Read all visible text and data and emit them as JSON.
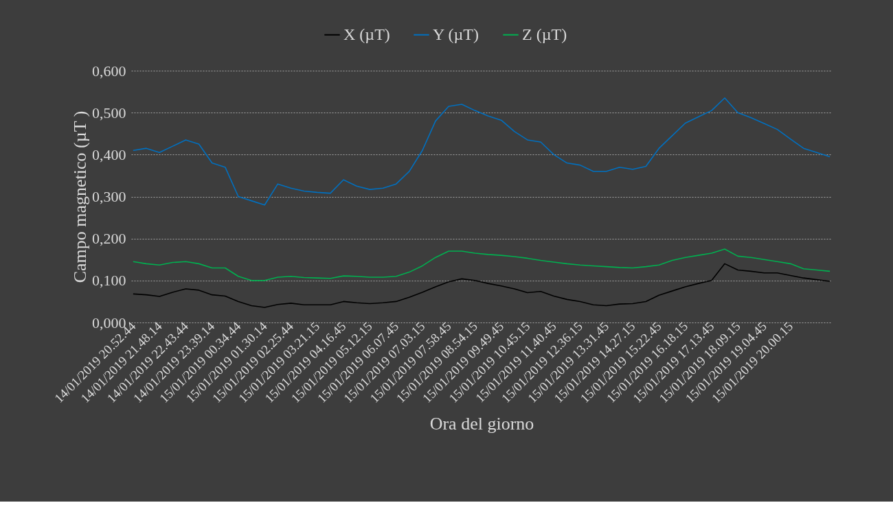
{
  "chart_data": {
    "type": "line",
    "xlabel": "Ora del giorno",
    "ylabel": "Campo magnetico (µT )",
    "legend": "top",
    "grid": "y",
    "line_style": "solid",
    "marker": "none",
    "categories": [
      "14/01/2019 20.52.44",
      null,
      "14/01/2019 21.48.14",
      null,
      "14/01/2019 22.43.44",
      null,
      "14/01/2019 23.39.14",
      null,
      "15/01/2019 00.34.44",
      null,
      "15/01/2019 01.30.14",
      null,
      "15/01/2019 02.25.44",
      null,
      "15/01/2019 03.21.15",
      null,
      "15/01/2019 04.16.45",
      null,
      "15/01/2019 05.12.15",
      null,
      "15/01/2019 06.07.45",
      null,
      "15/01/2019 07.03.15",
      null,
      "15/01/2019 07.58.45",
      null,
      "15/01/2019 08.54.15",
      null,
      "15/01/2019 09.49.45",
      null,
      "15/01/2019 10.45.15",
      null,
      "15/01/2019 11.40.45",
      null,
      "15/01/2019 12.36.15",
      null,
      "15/01/2019 13.31.45",
      null,
      "15/01/2019 14.27.15",
      null,
      "15/01/2019 15.22.45",
      null,
      "15/01/2019 16.18.15",
      null,
      "15/01/2019 17.13.45",
      null,
      "15/01/2019 18.09.15",
      null,
      "15/01/2019 19.04.45",
      null,
      "15/01/2019 20.00.15",
      null,
      null,
      null
    ],
    "ylim": [
      0,
      0.6
    ],
    "yticks": [
      {
        "value": 0,
        "label": "0,000"
      },
      {
        "value": 0.1,
        "label": "0,100"
      },
      {
        "value": 0.2,
        "label": "0,200"
      },
      {
        "value": 0.3,
        "label": "0,300"
      },
      {
        "value": 0.4,
        "label": "0,400"
      },
      {
        "value": 0.5,
        "label": "0,500"
      },
      {
        "value": 0.6,
        "label": "0,600"
      }
    ],
    "series": [
      {
        "name": "X (µT)",
        "color": "#000000",
        "values": [
          0.068,
          0.066,
          0.062,
          0.072,
          0.08,
          0.077,
          0.066,
          0.063,
          0.05,
          0.04,
          0.036,
          0.043,
          0.046,
          0.042,
          0.042,
          0.042,
          0.05,
          0.047,
          0.045,
          0.047,
          0.05,
          0.06,
          0.072,
          0.085,
          0.097,
          0.104,
          0.1,
          0.093,
          0.087,
          0.08,
          0.071,
          0.074,
          0.063,
          0.055,
          0.05,
          0.042,
          0.04,
          0.044,
          0.045,
          0.05,
          0.065,
          0.075,
          0.085,
          0.093,
          0.1,
          0.14,
          0.125,
          0.122,
          0.118,
          0.118,
          0.112,
          0.106,
          0.102,
          0.098
        ]
      },
      {
        "name": "Y (µT)",
        "color": "#0070c0",
        "values": [
          0.41,
          0.415,
          0.405,
          0.42,
          0.435,
          0.425,
          0.38,
          0.37,
          0.3,
          0.29,
          0.28,
          0.33,
          0.32,
          0.313,
          0.31,
          0.308,
          0.34,
          0.325,
          0.317,
          0.32,
          0.33,
          0.36,
          0.41,
          0.48,
          0.515,
          0.52,
          0.505,
          0.492,
          0.482,
          0.455,
          0.435,
          0.43,
          0.4,
          0.38,
          0.375,
          0.36,
          0.36,
          0.37,
          0.365,
          0.372,
          0.415,
          0.445,
          0.475,
          0.49,
          0.505,
          0.535,
          0.5,
          0.488,
          0.474,
          0.46,
          0.437,
          0.415,
          0.405,
          0.395
        ]
      },
      {
        "name": "Z (µT)",
        "color": "#00b050",
        "values": [
          0.145,
          0.14,
          0.137,
          0.143,
          0.145,
          0.14,
          0.13,
          0.13,
          0.11,
          0.1,
          0.1,
          0.108,
          0.11,
          0.107,
          0.106,
          0.105,
          0.111,
          0.11,
          0.108,
          0.108,
          0.11,
          0.12,
          0.135,
          0.155,
          0.17,
          0.17,
          0.165,
          0.162,
          0.16,
          0.157,
          0.153,
          0.148,
          0.144,
          0.14,
          0.137,
          0.135,
          0.133,
          0.131,
          0.13,
          0.133,
          0.137,
          0.148,
          0.155,
          0.16,
          0.165,
          0.175,
          0.158,
          0.155,
          0.15,
          0.145,
          0.14,
          0.128,
          0.125,
          0.122
        ]
      }
    ]
  }
}
